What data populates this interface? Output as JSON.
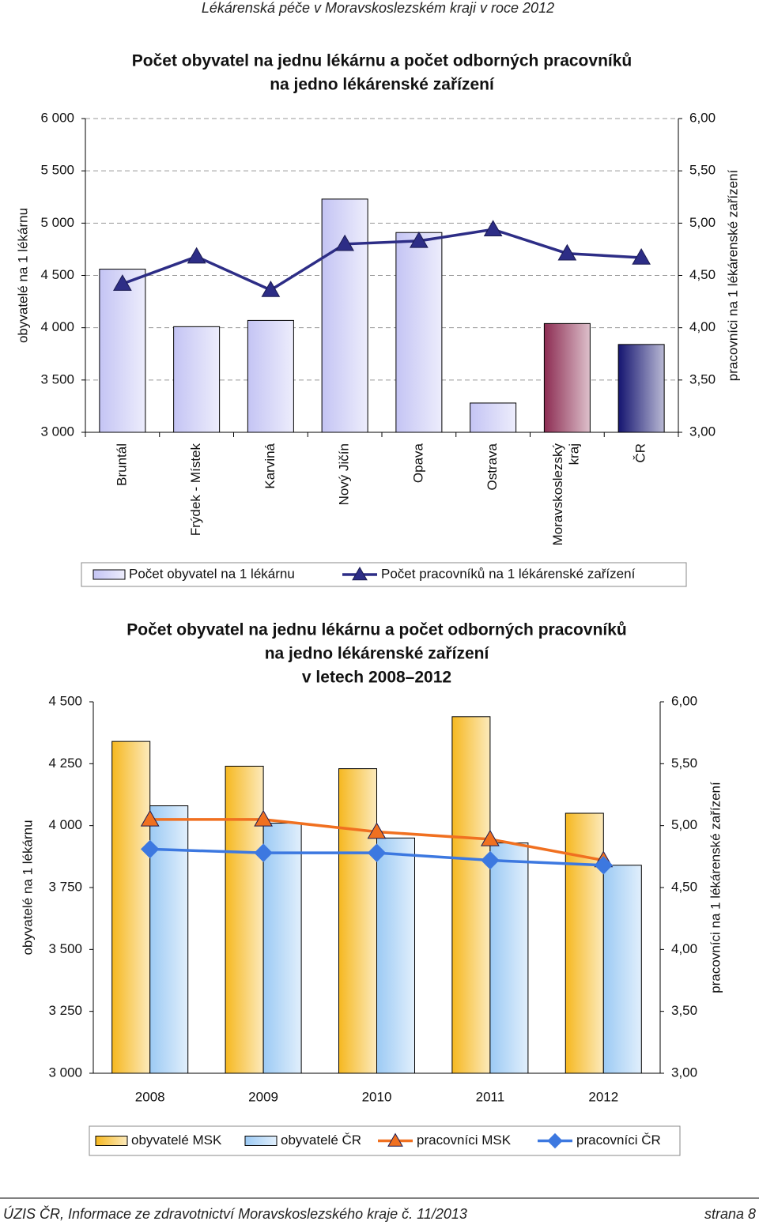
{
  "header": {
    "title": "Lékárenská péče v Moravskoslezském kraji v roce 2012"
  },
  "chart_data": [
    {
      "type": "combo",
      "title": [
        "Počet obyvatel na jednu lékárnu a počet odborných pracovníků",
        "na jedno lékárenské zařízení"
      ],
      "ylabel": "obyvatelé na 1 lékárnu",
      "y2label": "pracovníci na 1 lékárenské zařízení",
      "categories": [
        "Bruntál",
        "Frýdek - Místek",
        "Karviná",
        "Nový Jičín",
        "Opava",
        "Ostrava",
        "Moravskoslezský kraj",
        "ČR"
      ],
      "series": [
        {
          "name": "Počet obyvatel na 1 lékárnu",
          "type": "bar",
          "color": "#c4c4f4",
          "colors": [
            "#c4c4f4",
            "#c4c4f4",
            "#c4c4f4",
            "#c4c4f4",
            "#c4c4f4",
            "#c4c4f4",
            "#8c2c52",
            "#141470"
          ],
          "values": [
            4560,
            4010,
            4070,
            5230,
            4910,
            3280,
            4040,
            3840
          ]
        },
        {
          "name": "Počet pracovníků na 1 lékárenské zařízení",
          "type": "line",
          "axis": "y2",
          "color": "#2d2d86",
          "marker": "triangle",
          "values": [
            4.42,
            4.68,
            4.36,
            4.8,
            4.83,
            4.94,
            4.71,
            4.67
          ]
        }
      ],
      "ylim": [
        3000,
        6000
      ],
      "yticks": [
        {
          "value": 3000,
          "label": "3 000"
        },
        {
          "value": 3500,
          "label": "3 500"
        },
        {
          "value": 4000,
          "label": "4 000"
        },
        {
          "value": 4500,
          "label": "4 500"
        },
        {
          "value": 5000,
          "label": "5 000"
        },
        {
          "value": 5500,
          "label": "5 500"
        },
        {
          "value": 6000,
          "label": "6 000"
        }
      ],
      "y2lim": [
        3,
        6
      ],
      "y2ticks": [
        {
          "value": 3,
          "label": "3,00"
        },
        {
          "value": 3.5,
          "label": "3,50"
        },
        {
          "value": 4,
          "label": "4,00"
        },
        {
          "value": 4.5,
          "label": "4,50"
        },
        {
          "value": 5,
          "label": "5,00"
        },
        {
          "value": 5.5,
          "label": "5,50"
        },
        {
          "value": 6,
          "label": "6,00"
        }
      ],
      "grid": true
    },
    {
      "type": "combo",
      "title": [
        "Počet obyvatel na jednu lékárnu a počet odborných pracovníků",
        "na jedno lékárenské zařízení",
        "v letech 2008–2012"
      ],
      "ylabel": "obyvatelé na 1 lékárnu",
      "y2label": "pracovníci na 1 lékárenské zařízení",
      "categories": [
        "2008",
        "2009",
        "2010",
        "2011",
        "2012"
      ],
      "series": [
        {
          "name": "obyvatelé MSK",
          "type": "bar",
          "color": "#f6b820",
          "values": [
            4340,
            4240,
            4230,
            4440,
            4050
          ]
        },
        {
          "name": "obyvatelé ČR",
          "type": "bar",
          "color": "#9ccaf4",
          "values": [
            4080,
            4010,
            3950,
            3930,
            3840
          ]
        },
        {
          "name": "pracovníci MSK",
          "type": "line",
          "axis": "y2",
          "color": "#f07020",
          "marker": "triangle",
          "values": [
            5.05,
            5.05,
            4.95,
            4.89,
            4.72
          ]
        },
        {
          "name": "pracovníci ČR",
          "type": "line",
          "axis": "y2",
          "color": "#3c78e0",
          "marker": "diamond",
          "values": [
            4.81,
            4.78,
            4.78,
            4.72,
            4.68
          ]
        }
      ],
      "ylim": [
        3000,
        4500
      ],
      "yticks": [
        {
          "value": 3000,
          "label": "3 000"
        },
        {
          "value": 3250,
          "label": "3 250"
        },
        {
          "value": 3500,
          "label": "3 500"
        },
        {
          "value": 3750,
          "label": "3 750"
        },
        {
          "value": 4000,
          "label": "4 000"
        },
        {
          "value": 4250,
          "label": "4 250"
        },
        {
          "value": 4500,
          "label": "4 500"
        }
      ],
      "y2lim": [
        3,
        6
      ],
      "y2ticks": [
        {
          "value": 3,
          "label": "3,00"
        },
        {
          "value": 3.5,
          "label": "3,50"
        },
        {
          "value": 4,
          "label": "4,00"
        },
        {
          "value": 4.5,
          "label": "4,50"
        },
        {
          "value": 5,
          "label": "5,00"
        },
        {
          "value": 5.5,
          "label": "5,50"
        },
        {
          "value": 6,
          "label": "6,00"
        }
      ],
      "grid": false
    }
  ],
  "footer": {
    "source": "ÚZIS ČR, Informace ze zdravotnictví Moravskoslezského kraje č. 11/2013",
    "page": "strana 8"
  }
}
